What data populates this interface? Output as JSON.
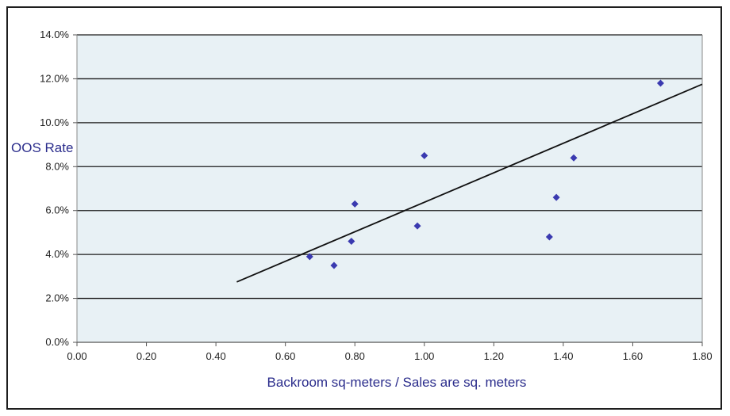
{
  "chart_data": {
    "type": "scatter",
    "title": "",
    "xlabel": "Backroom sq-meters / Sales are sq. meters",
    "ylabel": "OOS Rate",
    "xlim": [
      0,
      1.8
    ],
    "ylim": [
      0,
      0.14
    ],
    "x_ticks": [
      0,
      0.2,
      0.4,
      0.6,
      0.8,
      1.0,
      1.2,
      1.4,
      1.6,
      1.8
    ],
    "x_tick_labels": [
      "0.00",
      "0.20",
      "0.40",
      "0.60",
      "0.80",
      "1.00",
      "1.20",
      "1.40",
      "1.60",
      "1.80"
    ],
    "y_ticks": [
      0,
      0.02,
      0.04,
      0.06,
      0.08,
      0.1,
      0.12,
      0.14
    ],
    "y_tick_labels": [
      "0.0%",
      "2.0%",
      "4.0%",
      "6.0%",
      "8.0%",
      "10.0%",
      "12.0%",
      "14.0%"
    ],
    "grid": "horizontal",
    "legend": "none",
    "series": [
      {
        "points": [
          {
            "x": 0.67,
            "y": 0.039
          },
          {
            "x": 0.74,
            "y": 0.035
          },
          {
            "x": 0.79,
            "y": 0.046
          },
          {
            "x": 0.8,
            "y": 0.063
          },
          {
            "x": 0.98,
            "y": 0.053
          },
          {
            "x": 1.0,
            "y": 0.085
          },
          {
            "x": 1.36,
            "y": 0.048
          },
          {
            "x": 1.38,
            "y": 0.066
          },
          {
            "x": 1.43,
            "y": 0.084
          },
          {
            "x": 1.68,
            "y": 0.118
          }
        ]
      }
    ],
    "trendline": {
      "type": "linear",
      "from": {
        "x": 0.46,
        "y": 0.0275
      },
      "to": {
        "x": 1.8,
        "y": 0.1175
      }
    },
    "colors": {
      "plot_background": "#e8f1f5",
      "gridline": "#1a1a1a",
      "marker": "#3a3ab0",
      "trendline": "#111111",
      "axis_title": "#2b2d8c"
    }
  }
}
